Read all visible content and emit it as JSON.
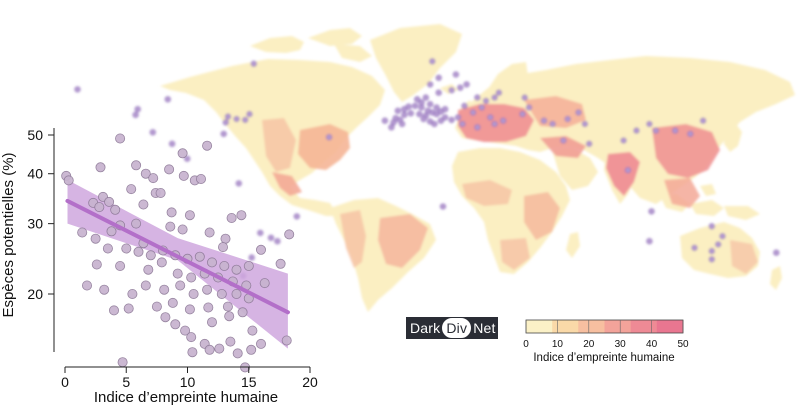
{
  "chart_data": [
    {
      "type": "scatter",
      "xlabel": "Indice d’empreinte humaine",
      "ylabel": "Espèces potentielles (%)",
      "xlim": [
        0,
        20
      ],
      "ylim": [
        11,
        52
      ],
      "yscale": "log",
      "xticks": [
        "0",
        "5",
        "10",
        "15",
        "20"
      ],
      "yticks": [
        "20",
        "30",
        "40",
        "50"
      ],
      "point_color": "#c7b3cf",
      "trend_color": "#b36fc9",
      "band_color": "#cfa7de",
      "trend": {
        "x": [
          0.2,
          18.2
        ],
        "y": [
          34.2,
          18.0
        ]
      },
      "band_upper": {
        "x": [
          0.2,
          9.2,
          18.2
        ],
        "y": [
          38.6,
          27.6,
          22.5
        ]
      },
      "band_lower": {
        "x": [
          0.2,
          9.2,
          18.2
        ],
        "y": [
          30.0,
          24.3,
          14.6
        ]
      },
      "points": [
        [
          0.1,
          39.5
        ],
        [
          0.3,
          38.5
        ],
        [
          4.5,
          49.0
        ],
        [
          11.6,
          47.0
        ],
        [
          9.6,
          45.0
        ],
        [
          5.8,
          42.0
        ],
        [
          2.9,
          41.5
        ],
        [
          8.5,
          41.0
        ],
        [
          6.6,
          40.0
        ],
        [
          9.7,
          39.5
        ],
        [
          7.2,
          39.0
        ],
        [
          10.6,
          38.5
        ],
        [
          11.1,
          38.8
        ],
        [
          5.4,
          36.6
        ],
        [
          3.1,
          35.0
        ],
        [
          7.4,
          35.8
        ],
        [
          7.8,
          35.8
        ],
        [
          2.3,
          33.8
        ],
        [
          3.6,
          34.0
        ],
        [
          2.8,
          33.0
        ],
        [
          4.1,
          32.5
        ],
        [
          6.4,
          33.5
        ],
        [
          8.7,
          32.0
        ],
        [
          10.2,
          31.5
        ],
        [
          13.6,
          31.0
        ],
        [
          14.4,
          31.5
        ],
        [
          1.4,
          28.5
        ],
        [
          3.8,
          28.7
        ],
        [
          4.5,
          29.7
        ],
        [
          5.8,
          30.0
        ],
        [
          8.6,
          29.5
        ],
        [
          9.6,
          29.0
        ],
        [
          11.8,
          28.5
        ],
        [
          13.1,
          27.5
        ],
        [
          18.3,
          28.2
        ],
        [
          2.5,
          27.5
        ],
        [
          3.5,
          26.0
        ],
        [
          5.0,
          26.0
        ],
        [
          6.0,
          25.5
        ],
        [
          7.0,
          25.0
        ],
        [
          8.0,
          25.7
        ],
        [
          9.0,
          25.0
        ],
        [
          10.0,
          24.5
        ],
        [
          11.0,
          24.8
        ],
        [
          12.0,
          24.0
        ],
        [
          13.0,
          23.5
        ],
        [
          14.0,
          23.0
        ],
        [
          15.0,
          23.5
        ],
        [
          16.0,
          25.8
        ],
        [
          2.6,
          23.7
        ],
        [
          4.5,
          23.5
        ],
        [
          6.8,
          23.0
        ],
        [
          7.9,
          24.0
        ],
        [
          9.2,
          22.5
        ],
        [
          10.3,
          22.0
        ],
        [
          11.4,
          22.5
        ],
        [
          12.5,
          22.0
        ],
        [
          13.7,
          21.5
        ],
        [
          14.8,
          21.0
        ],
        [
          17.6,
          23.8
        ],
        [
          1.8,
          21.0
        ],
        [
          3.2,
          20.5
        ],
        [
          5.5,
          20.0
        ],
        [
          6.6,
          21.0
        ],
        [
          8.1,
          20.5
        ],
        [
          9.4,
          21.0
        ],
        [
          10.5,
          20.0
        ],
        [
          11.6,
          20.5
        ],
        [
          12.8,
          20.0
        ],
        [
          14.0,
          20.0
        ],
        [
          15.0,
          19.5
        ],
        [
          4.0,
          18.2
        ],
        [
          5.2,
          18.4
        ],
        [
          7.5,
          18.6
        ],
        [
          8.8,
          19.0
        ],
        [
          10.2,
          18.3
        ],
        [
          11.7,
          18.5
        ],
        [
          13.3,
          18.6
        ],
        [
          14.5,
          18.0
        ],
        [
          8.2,
          17.5
        ],
        [
          9.8,
          16.2
        ],
        [
          12.0,
          17.0
        ],
        [
          13.4,
          17.6
        ],
        [
          15.3,
          16.2
        ],
        [
          10.3,
          15.6
        ],
        [
          11.4,
          15.0
        ],
        [
          12.6,
          14.6
        ],
        [
          13.5,
          15.2
        ],
        [
          14.1,
          14.2
        ],
        [
          15.2,
          14.5
        ],
        [
          16.0,
          15.0
        ],
        [
          18.1,
          15.3
        ],
        [
          10.4,
          14.3
        ],
        [
          11.8,
          14.5
        ],
        [
          4.7,
          13.5
        ],
        [
          14.7,
          13.1
        ],
        [
          9.0,
          16.8
        ],
        [
          6.4,
          26.8
        ],
        [
          12.9,
          26.2
        ],
        [
          16.3,
          21.3
        ]
      ]
    },
    {
      "type": "heatmap",
      "legend_title": "Indice d’empreinte humaine",
      "legend_ticks": [
        "0",
        "10",
        "20",
        "30",
        "40",
        "50"
      ],
      "legend_range": [
        0,
        50
      ],
      "colorscale": [
        "#fbf1c7",
        "#fad9a8",
        "#f7bfa0",
        "#f3a39a",
        "#ee8a95",
        "#e97690"
      ],
      "site_color": "#b79dd3",
      "site_stroke": "#8e6bb8",
      "sites": [
        [
          -68,
          76.5
        ],
        [
          -150,
          61
        ],
        [
          -122,
          49
        ],
        [
          -108,
          55
        ],
        [
          -123,
          45.5
        ],
        [
          -76,
          43
        ],
        [
          -80,
          44.5
        ],
        [
          -72,
          42.5
        ],
        [
          -70,
          46
        ],
        [
          -81,
          41
        ],
        [
          -82,
          34
        ],
        [
          -115,
          35
        ],
        [
          -106,
          28
        ],
        [
          -99,
          19
        ],
        [
          -75,
          4
        ],
        [
          -48,
          -16
        ],
        [
          -57,
          -31
        ],
        [
          -65,
          -26
        ],
        [
          -60,
          -29
        ],
        [
          -69,
          -41
        ],
        [
          -73,
          -52
        ],
        [
          -4,
          38
        ],
        [
          -7,
          42
        ],
        [
          -2,
          43.5
        ],
        [
          -1,
          48
        ],
        [
          2,
          49
        ],
        [
          4,
          50.5
        ],
        [
          7,
          51
        ],
        [
          10,
          50
        ],
        [
          13,
          48
        ],
        [
          15,
          47
        ],
        [
          17,
          46
        ],
        [
          12,
          45
        ],
        [
          9,
          46
        ],
        [
          5,
          46.5
        ],
        [
          2,
          45.5
        ],
        [
          0,
          42.5
        ],
        [
          -3,
          41
        ],
        [
          1,
          40
        ],
        [
          11,
          43
        ],
        [
          14,
          41.5
        ],
        [
          16,
          40
        ],
        [
          19,
          42
        ],
        [
          21,
          44
        ],
        [
          24,
          42.5
        ],
        [
          27,
          44
        ],
        [
          19,
          47.5
        ],
        [
          21,
          49
        ],
        [
          17,
          50
        ],
        [
          14,
          52
        ],
        [
          10,
          53
        ],
        [
          8,
          55
        ],
        [
          12,
          56
        ],
        [
          18,
          59
        ],
        [
          24,
          60.5
        ],
        [
          28,
          62
        ],
        [
          31,
          64
        ],
        [
          14,
          64
        ],
        [
          18,
          68
        ],
        [
          26,
          70
        ],
        [
          15,
          78
        ],
        [
          36,
          56
        ],
        [
          40,
          54
        ],
        [
          44,
          56
        ],
        [
          46,
          59
        ],
        [
          38,
          50
        ],
        [
          30,
          51
        ],
        [
          34,
          47
        ],
        [
          42,
          44
        ],
        [
          48,
          42
        ],
        [
          44,
          40
        ],
        [
          36,
          38
        ],
        [
          29,
          40
        ],
        [
          58,
          56
        ],
        [
          60,
          50
        ],
        [
          67,
          42
        ],
        [
          78,
          43
        ],
        [
          86,
          40
        ],
        [
          83,
          47
        ],
        [
          71,
          40
        ],
        [
          57,
          46
        ],
        [
          76,
          30
        ],
        [
          88,
          28
        ],
        [
          104,
          30
        ],
        [
          110,
          36
        ],
        [
          116,
          40
        ],
        [
          119,
          36
        ],
        [
          128,
          36
        ],
        [
          141,
          42
        ],
        [
          135,
          34
        ],
        [
          106,
          12
        ],
        [
          145,
          -22
        ],
        [
          150,
          -28
        ],
        [
          148,
          -33
        ],
        [
          137,
          -35
        ],
        [
          145,
          -37
        ],
        [
          116,
          -31
        ],
        [
          145,
          -42
        ],
        [
          175,
          -38
        ],
        [
          117,
          -13
        ],
        [
          20,
          -10
        ],
        [
          -33,
          32
        ]
      ]
    }
  ],
  "logo": {
    "part1": "Dark",
    "part2": "Div",
    "part3": "Net"
  }
}
